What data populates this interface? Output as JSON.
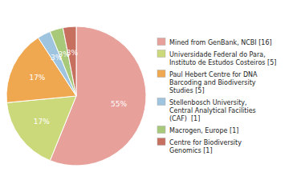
{
  "chart_data": {
    "type": "pie",
    "categories": [
      "Mined from GenBank, NCBI [16]",
      "Universidade Federal do Para,\nInstituto de Estudos Costeiros [5]",
      "Paul Hebert Centre for DNA\nBarcoding and Biodiversity\nStudies [5]",
      "Stellenbosch University,\nCentral Analytical Facilities\n(CAF)  [1]",
      "Macrogen, Europe [1]",
      "Centre for Biodiversity\nGenomics [1]"
    ],
    "values": [
      55,
      17,
      17,
      3,
      3,
      3
    ],
    "value_labels": [
      "55%",
      "17%",
      "17%",
      "3%",
      "3%",
      "3%"
    ],
    "data_labels": true,
    "colors": [
      "#e8a09a",
      "#ccd97a",
      "#f0a850",
      "#9ec4e0",
      "#a8c87a",
      "#c87060"
    ],
    "legend": "right"
  }
}
